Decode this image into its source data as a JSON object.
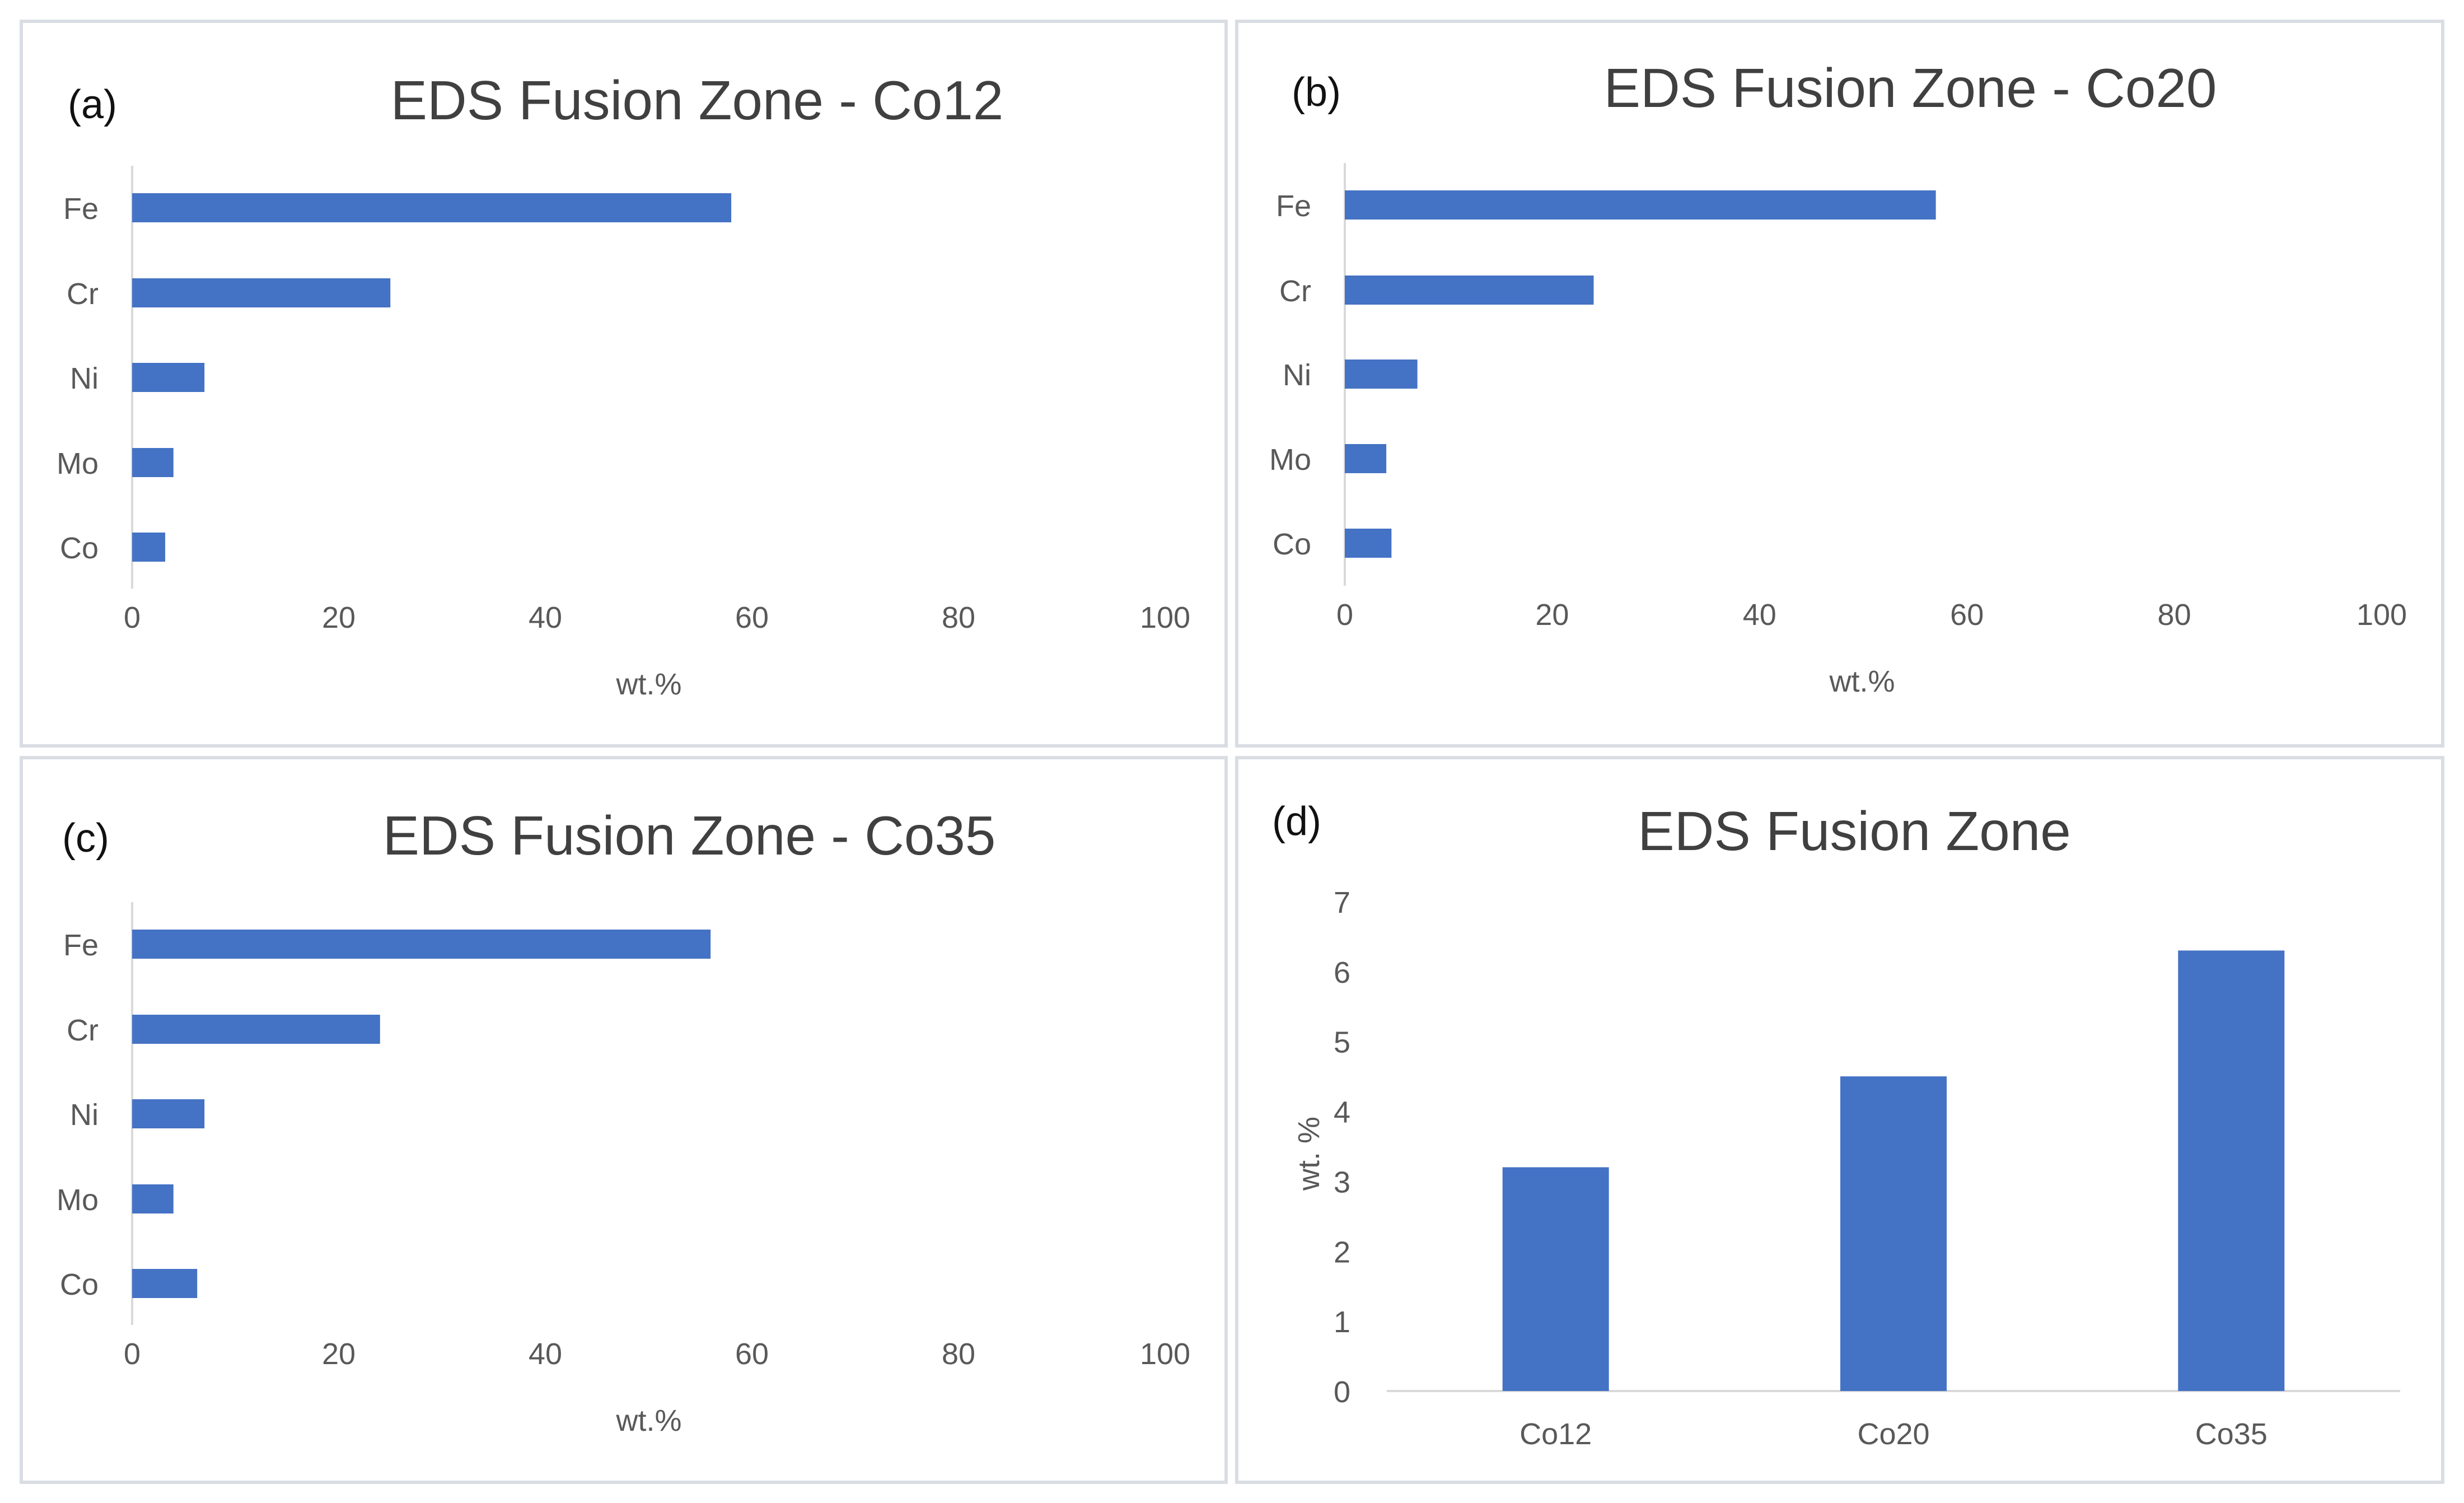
{
  "colors": {
    "bar": "#4472C4",
    "axis": "#d9d9d9",
    "tick_text": "#595959",
    "title": "#404040"
  },
  "chart_data": [
    {
      "id": "a",
      "type": "bar",
      "orientation": "horizontal",
      "panel_label": "(a)",
      "title": "EDS Fusion Zone - Co12",
      "categories": [
        "Fe",
        "Cr",
        "Ni",
        "Mo",
        "Co"
      ],
      "values": [
        58,
        25,
        7,
        4,
        3.2
      ],
      "xlabel": "wt.%",
      "ylabel": "",
      "xlim": [
        0,
        100
      ],
      "ticks": [
        "0",
        "20",
        "40",
        "60",
        "80",
        "100"
      ]
    },
    {
      "id": "b",
      "type": "bar",
      "orientation": "horizontal",
      "panel_label": "(b)",
      "title": "EDS Fusion Zone - Co20",
      "categories": [
        "Fe",
        "Cr",
        "Ni",
        "Mo",
        "Co"
      ],
      "values": [
        57,
        24,
        7,
        4,
        4.5
      ],
      "xlabel": "wt.%",
      "ylabel": "",
      "xlim": [
        0,
        100
      ],
      "ticks": [
        "0",
        "20",
        "40",
        "60",
        "80",
        "100"
      ]
    },
    {
      "id": "c",
      "type": "bar",
      "orientation": "horizontal",
      "panel_label": "(c)",
      "title": "EDS Fusion Zone - Co35",
      "categories": [
        "Fe",
        "Cr",
        "Ni",
        "Mo",
        "Co"
      ],
      "values": [
        56,
        24,
        7,
        4,
        6.3
      ],
      "xlabel": "wt.%",
      "ylabel": "",
      "xlim": [
        0,
        100
      ],
      "ticks": [
        "0",
        "20",
        "40",
        "60",
        "80",
        "100"
      ]
    },
    {
      "id": "d",
      "type": "bar",
      "orientation": "vertical",
      "panel_label": "(d)",
      "title": "EDS Fusion Zone",
      "categories": [
        "Co12",
        "Co20",
        "Co35"
      ],
      "values": [
        3.2,
        4.5,
        6.3
      ],
      "xlabel": "",
      "ylabel": "wt. %",
      "ylim": [
        0,
        7
      ],
      "ticks": [
        "0",
        "1",
        "2",
        "3",
        "4",
        "5",
        "6",
        "7"
      ]
    }
  ]
}
